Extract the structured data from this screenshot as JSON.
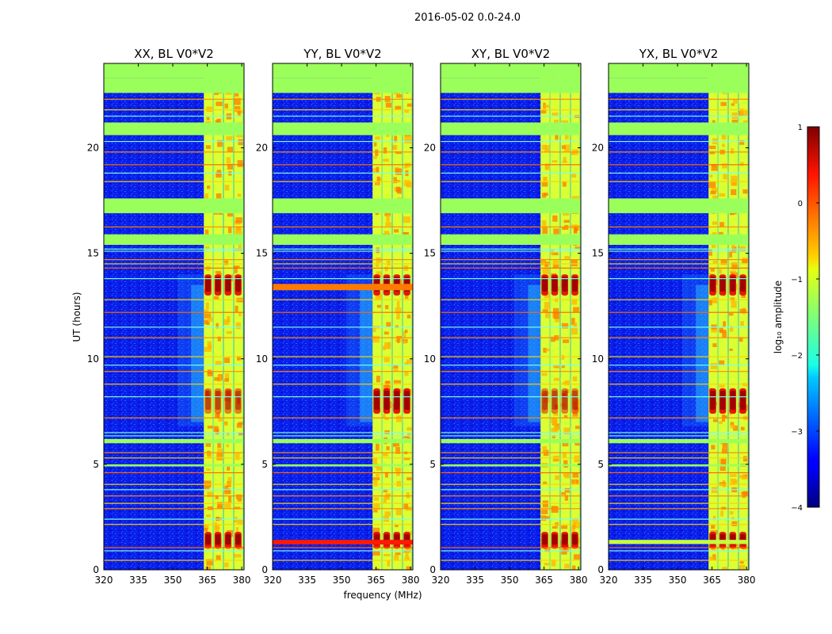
{
  "chart_data": {
    "type": "heatmap",
    "suptitle": "2016-05-02 0.0-24.0",
    "xlabel": "frequency (MHz)",
    "ylabel": "UT (hours)",
    "xlim": [
      320,
      381
    ],
    "ylim": [
      0,
      24
    ],
    "xticks": [
      "320",
      "335",
      "350",
      "365",
      "380"
    ],
    "yticks": [
      "0",
      "5",
      "10",
      "15",
      "20"
    ],
    "colormap": "jet",
    "colorbar": {
      "label": "log₁₀ amplitude",
      "range": [
        -4,
        1
      ],
      "ticks": [
        "1",
        "0",
        "−1",
        "−2",
        "−3",
        "−4"
      ]
    },
    "panels": [
      {
        "title": "XX, BL V0*V2",
        "rfi_line": null,
        "bright_start_mhz": 363.5
      },
      {
        "title": "YY, BL V0*V2",
        "rfi_line": "strong broadband at ~1.3 h and ~13.4 h",
        "bright_start_mhz": 363.5
      },
      {
        "title": "XY, BL V0*V2",
        "rfi_line": null,
        "bright_start_mhz": 363.5
      },
      {
        "title": "YX, BL V0*V2",
        "rfi_line": "weak broadband at ~1.3 h",
        "bright_start_mhz": 363.5
      }
    ],
    "flagged_time_ranges_hours": [
      [
        22.6,
        23.3
      ],
      [
        20.6,
        21.2
      ],
      [
        16.9,
        17.6
      ],
      [
        15.4,
        15.9
      ],
      [
        6.0,
        6.2
      ],
      [
        4.9,
        5.0
      ]
    ],
    "bright_bands_mhz": [
      [
        363.5,
        367.5
      ],
      [
        367.8,
        371.8
      ],
      [
        372.2,
        376.2
      ],
      [
        376.6,
        380.6
      ]
    ],
    "strong_emission_hours": [
      [
        13.0,
        14.0
      ],
      [
        1.0,
        1.8
      ],
      [
        7.4,
        8.6
      ]
    ]
  }
}
